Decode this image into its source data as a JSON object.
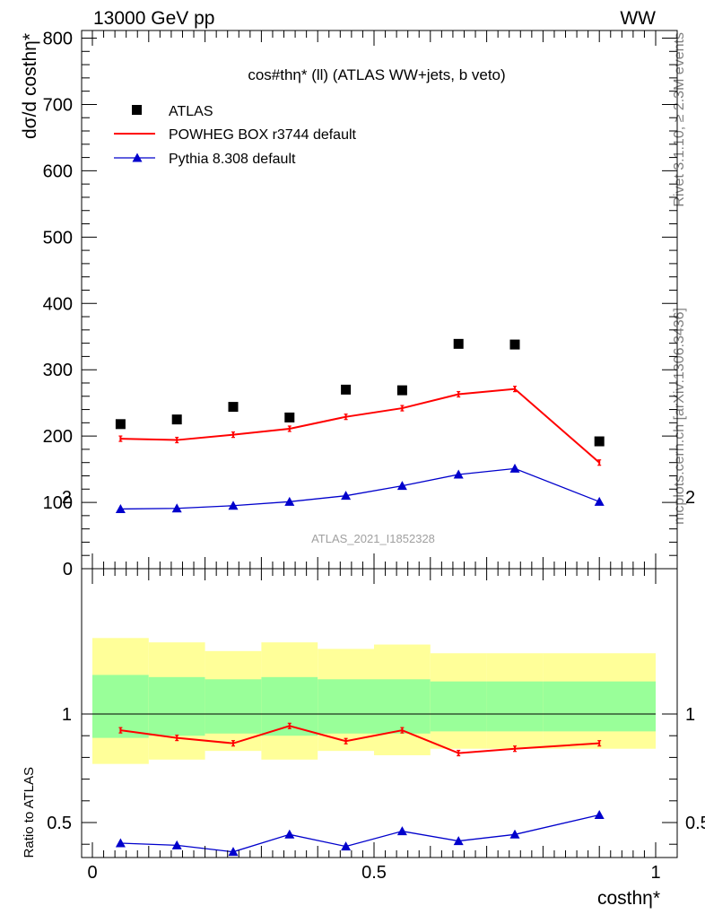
{
  "header": {
    "left": "13000 GeV pp",
    "right": "WW"
  },
  "side_labels": {
    "rivet": "Rivet 3.1.10, ≥ 2.3M events",
    "mcplots": "mcplots.cern.ch [arXiv:1306.3436]"
  },
  "reference_label": "ATLAS_2021_I1852328",
  "colors": {
    "data": "#000000",
    "powheg": "#ff0000",
    "pythia": "#0000cc",
    "band_outer": "#ffff99",
    "band_inner": "#99ff99"
  },
  "chart_data": [
    {
      "type": "scatter",
      "title": "cos#thη* (ll) (ATLAS WW+jets, b veto)",
      "ylabel": "dσ/d costhη*",
      "xlabel": "",
      "xlim": [
        0,
        1
      ],
      "ylim": [
        0,
        800
      ],
      "yticks": [
        0,
        100,
        200,
        300,
        400,
        500,
        600,
        700,
        800
      ],
      "x": [
        0.05,
        0.15,
        0.25,
        0.35,
        0.45,
        0.55,
        0.65,
        0.75,
        0.9
      ],
      "legend": [
        "ATLAS",
        "POWHEG BOX r3744 default",
        "Pythia 8.308 default"
      ],
      "legend_position": "top-left",
      "series": [
        {
          "name": "ATLAS",
          "marker": "square",
          "values": [
            218,
            225,
            244,
            228,
            270,
            269,
            339,
            338,
            192
          ]
        },
        {
          "name": "POWHEG BOX r3744 default",
          "marker": "line",
          "values": [
            196,
            194,
            202,
            211,
            229,
            242,
            263,
            271,
            160
          ]
        },
        {
          "name": "Pythia 8.308 default",
          "marker": "triangle",
          "values": [
            90,
            91,
            95,
            101,
            110,
            125,
            142,
            151,
            101
          ]
        }
      ]
    },
    {
      "type": "line",
      "ylabel": "Ratio to ATLAS",
      "xlabel": "costhη*",
      "xlim": [
        0,
        1
      ],
      "ylim": [
        0.35,
        2.3
      ],
      "yticks": [
        0.5,
        1,
        2
      ],
      "xticks": [
        0,
        0.5,
        1
      ],
      "bin_edges": [
        0,
        0.1,
        0.2,
        0.3,
        0.4,
        0.5,
        0.6,
        0.7,
        0.8,
        1.0
      ],
      "band_outer": {
        "lower": [
          0.77,
          0.79,
          0.83,
          0.79,
          0.83,
          0.81,
          0.84,
          0.84,
          0.84
        ],
        "upper": [
          1.35,
          1.33,
          1.29,
          1.33,
          1.3,
          1.32,
          1.28,
          1.28,
          1.28
        ]
      },
      "band_inner": {
        "lower": [
          0.89,
          0.9,
          0.91,
          0.9,
          0.91,
          0.91,
          0.92,
          0.92,
          0.92
        ],
        "upper": [
          1.18,
          1.17,
          1.16,
          1.17,
          1.16,
          1.16,
          1.15,
          1.15,
          1.15
        ]
      },
      "x": [
        0.05,
        0.15,
        0.25,
        0.35,
        0.45,
        0.55,
        0.65,
        0.75,
        0.9
      ],
      "series": [
        {
          "name": "POWHEG BOX r3744 default",
          "values": [
            0.925,
            0.89,
            0.865,
            0.945,
            0.875,
            0.925,
            0.82,
            0.84,
            0.865
          ]
        },
        {
          "name": "Pythia 8.308 default",
          "values": [
            0.405,
            0.395,
            0.365,
            0.445,
            0.39,
            0.46,
            0.415,
            0.445,
            0.535
          ]
        }
      ]
    }
  ]
}
